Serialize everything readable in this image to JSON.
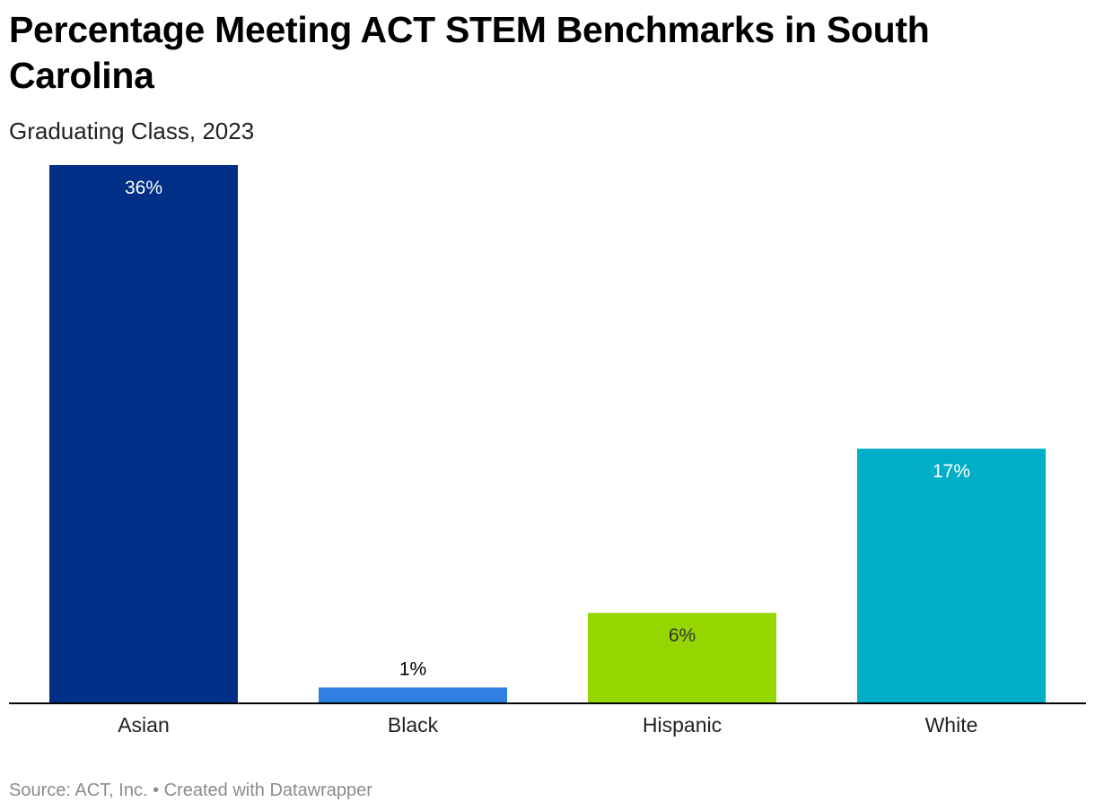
{
  "chart_data": {
    "type": "bar",
    "title": "Percentage Meeting ACT STEM Benchmarks in South Carolina",
    "subtitle": "Graduating Class, 2023",
    "categories": [
      "Asian",
      "Black",
      "Hispanic",
      "White"
    ],
    "values": [
      36,
      1,
      6,
      17
    ],
    "value_labels": [
      "36%",
      "1%",
      "6%",
      "17%"
    ],
    "colors": [
      "#002f87",
      "#2f7fe0",
      "#96d600",
      "#00aec7"
    ],
    "label_colors": [
      "#ffffff",
      "#000000",
      "#333333",
      "#ffffff"
    ],
    "ylim": [
      0,
      36
    ],
    "grid": false,
    "xlabel": "",
    "ylabel": "",
    "source": "Source: ACT, Inc. • Created with Datawrapper"
  }
}
